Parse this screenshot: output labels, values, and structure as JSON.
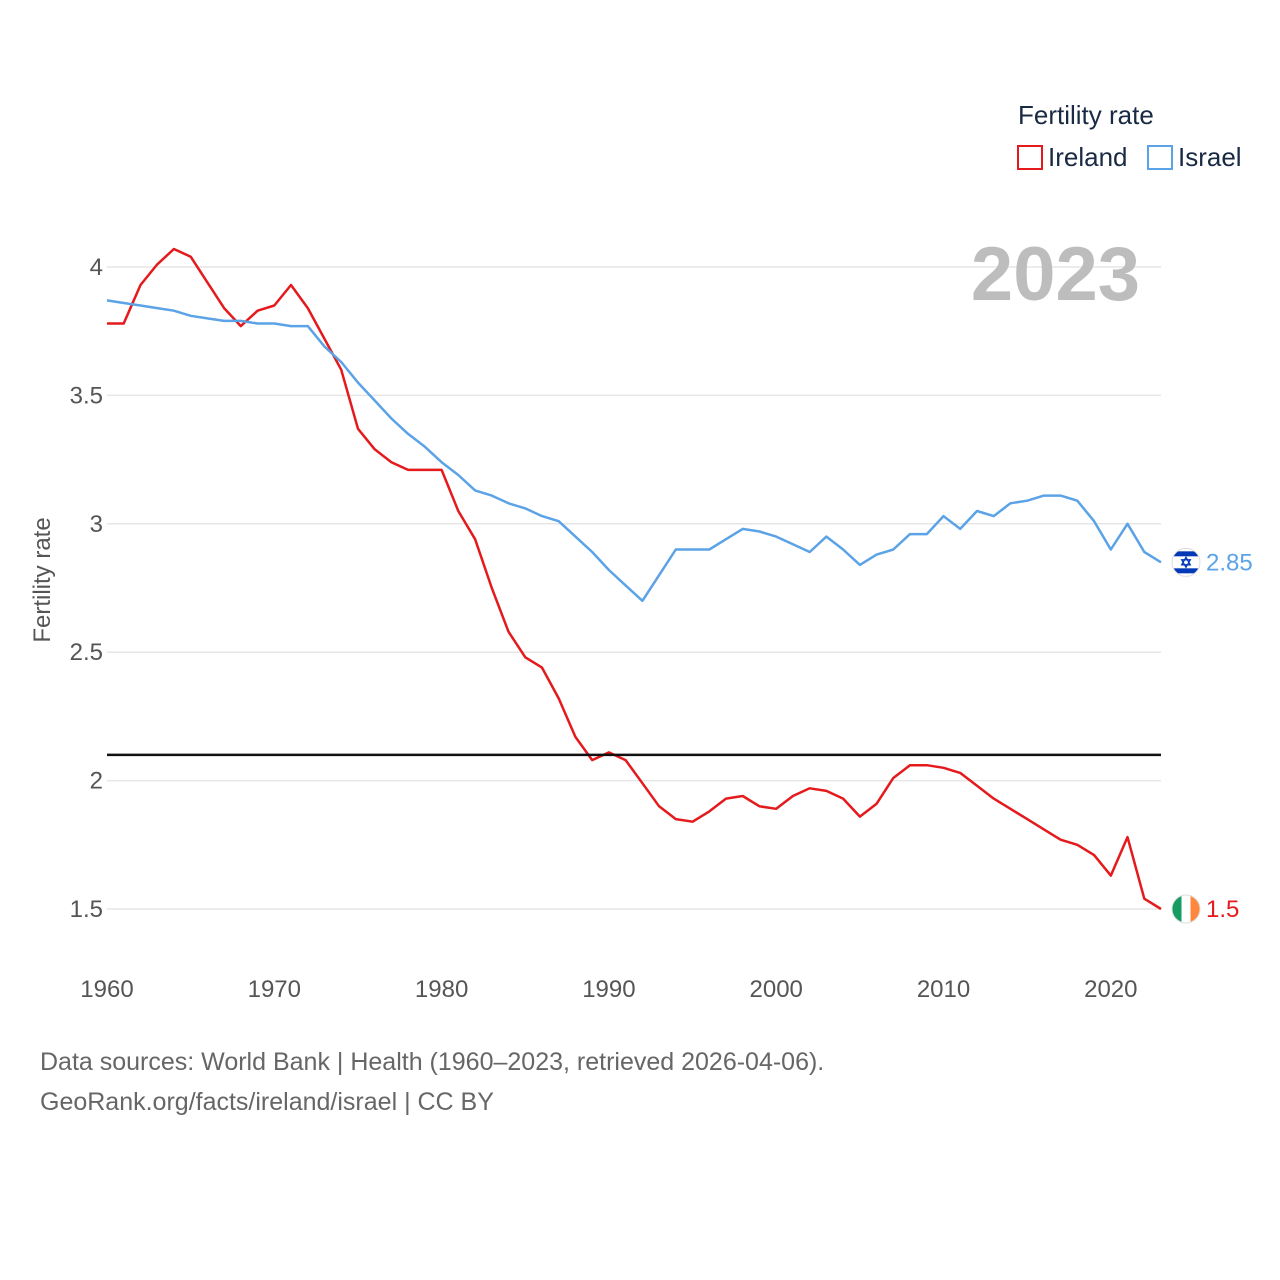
{
  "chart_data": {
    "type": "line",
    "title": "Fertility rate",
    "ylabel": "Fertility rate",
    "xlabel": "",
    "xlim": [
      1960,
      2023
    ],
    "ylim": [
      1.5,
      4.0
    ],
    "x_ticks": [
      1960,
      1970,
      1980,
      1990,
      2000,
      2010,
      2020
    ],
    "y_ticks": [
      1.5,
      2,
      2.5,
      3,
      3.5,
      4
    ],
    "grid": "horizontal",
    "legend_position": "top-right",
    "current_year": "2023",
    "reference_line": 2.1,
    "x": [
      1960,
      1961,
      1962,
      1963,
      1964,
      1965,
      1966,
      1967,
      1968,
      1969,
      1970,
      1971,
      1972,
      1973,
      1974,
      1975,
      1976,
      1977,
      1978,
      1979,
      1980,
      1981,
      1982,
      1983,
      1984,
      1985,
      1986,
      1987,
      1988,
      1989,
      1990,
      1991,
      1992,
      1993,
      1994,
      1995,
      1996,
      1997,
      1998,
      1999,
      2000,
      2001,
      2002,
      2003,
      2004,
      2005,
      2006,
      2007,
      2008,
      2009,
      2010,
      2011,
      2012,
      2013,
      2014,
      2015,
      2016,
      2017,
      2018,
      2019,
      2020,
      2021,
      2022,
      2023
    ],
    "series": [
      {
        "name": "Ireland",
        "color": "#e41a1c",
        "end_label": "1.5",
        "flag": "ireland-flag",
        "values": [
          3.78,
          3.78,
          3.93,
          4.01,
          4.07,
          4.04,
          3.94,
          3.84,
          3.77,
          3.83,
          3.85,
          3.93,
          3.84,
          3.72,
          3.6,
          3.37,
          3.29,
          3.24,
          3.21,
          3.21,
          3.21,
          3.05,
          2.94,
          2.75,
          2.58,
          2.48,
          2.44,
          2.32,
          2.17,
          2.08,
          2.11,
          2.08,
          1.99,
          1.9,
          1.85,
          1.84,
          1.88,
          1.93,
          1.94,
          1.9,
          1.89,
          1.94,
          1.97,
          1.96,
          1.93,
          1.86,
          1.91,
          2.01,
          2.06,
          2.06,
          2.05,
          2.03,
          1.98,
          1.93,
          1.89,
          1.85,
          1.81,
          1.77,
          1.75,
          1.71,
          1.63,
          1.78,
          1.54,
          1.5
        ]
      },
      {
        "name": "Israel",
        "color": "#5ba3e6",
        "end_label": "2.85",
        "flag": "israel-flag",
        "values": [
          3.87,
          3.86,
          3.85,
          3.84,
          3.83,
          3.81,
          3.8,
          3.79,
          3.79,
          3.78,
          3.78,
          3.77,
          3.77,
          3.69,
          3.63,
          3.55,
          3.48,
          3.41,
          3.35,
          3.3,
          3.24,
          3.19,
          3.13,
          3.11,
          3.08,
          3.06,
          3.03,
          3.01,
          2.95,
          2.89,
          2.82,
          2.76,
          2.7,
          2.8,
          2.9,
          2.9,
          2.9,
          2.94,
          2.98,
          2.97,
          2.95,
          2.92,
          2.89,
          2.95,
          2.9,
          2.84,
          2.88,
          2.9,
          2.96,
          2.96,
          3.03,
          2.98,
          3.05,
          3.03,
          3.08,
          3.09,
          3.11,
          3.11,
          3.09,
          3.01,
          2.9,
          3.0,
          2.89,
          2.85
        ]
      }
    ]
  },
  "footer": {
    "line1": "Data sources: World Bank | Health (1960–2023, retrieved 2026-04-06).",
    "line2": "GeoRank.org/facts/ireland/israel | CC BY"
  },
  "colors": {
    "grid": "#e6e6e6",
    "reference": "#111111",
    "tick_text": "#555555",
    "year_text": "#bdbdbd"
  }
}
